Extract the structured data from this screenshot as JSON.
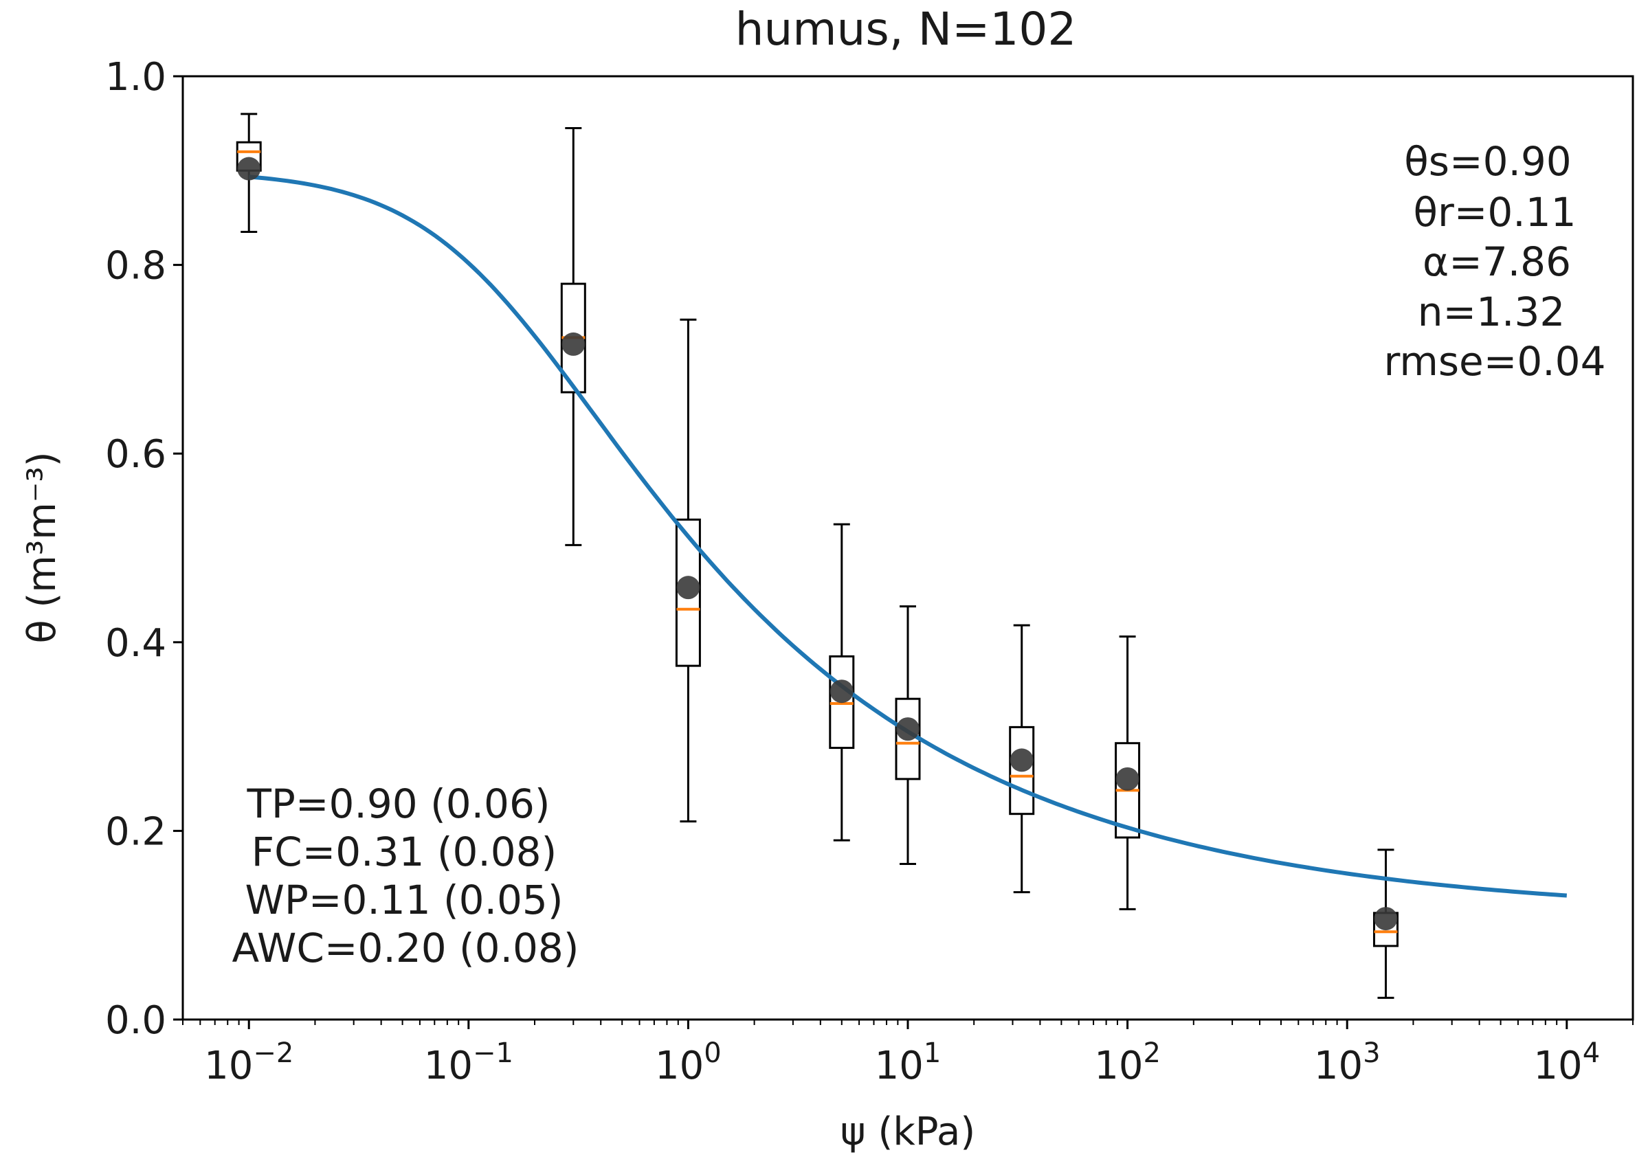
{
  "chart_data": {
    "type": "box",
    "title": "humus, N=102",
    "xlabel": "ψ (kPa)",
    "ylabel": "θ (m³m⁻³)",
    "xscale": "log",
    "xlim": [
      0.005,
      20000
    ],
    "ylim": [
      0.0,
      1.0
    ],
    "grid": false,
    "yticks": [
      {
        "value": 0.0,
        "label": "0.0"
      },
      {
        "value": 0.2,
        "label": "0.2"
      },
      {
        "value": 0.4,
        "label": "0.4"
      },
      {
        "value": 0.6,
        "label": "0.6"
      },
      {
        "value": 0.8,
        "label": "0.8"
      },
      {
        "value": 1.0,
        "label": "1.0"
      }
    ],
    "xticks": [
      {
        "value": 0.01,
        "base": "10",
        "exp": "−2"
      },
      {
        "value": 0.1,
        "base": "10",
        "exp": "−1"
      },
      {
        "value": 1,
        "base": "10",
        "exp": "0"
      },
      {
        "value": 10,
        "base": "10",
        "exp": "1"
      },
      {
        "value": 100,
        "base": "10",
        "exp": "2"
      },
      {
        "value": 1000,
        "base": "10",
        "exp": "3"
      },
      {
        "value": 10000,
        "base": "10",
        "exp": "4"
      }
    ],
    "boxes": [
      {
        "x": 0.01,
        "whisker_low": 0.835,
        "q1": 0.9,
        "median": 0.92,
        "q3": 0.93,
        "whisker_high": 0.96,
        "mean": 0.902
      },
      {
        "x": 0.3,
        "whisker_low": 0.503,
        "q1": 0.665,
        "median": 0.723,
        "q3": 0.78,
        "whisker_high": 0.945,
        "mean": 0.716
      },
      {
        "x": 1,
        "whisker_low": 0.21,
        "q1": 0.375,
        "median": 0.435,
        "q3": 0.53,
        "whisker_high": 0.742,
        "mean": 0.458
      },
      {
        "x": 5,
        "whisker_low": 0.19,
        "q1": 0.288,
        "median": 0.335,
        "q3": 0.385,
        "whisker_high": 0.525,
        "mean": 0.348
      },
      {
        "x": 10,
        "whisker_low": 0.165,
        "q1": 0.255,
        "median": 0.293,
        "q3": 0.34,
        "whisker_high": 0.438,
        "mean": 0.308
      },
      {
        "x": 33,
        "whisker_low": 0.135,
        "q1": 0.218,
        "median": 0.258,
        "q3": 0.31,
        "whisker_high": 0.418,
        "mean": 0.275
      },
      {
        "x": 100,
        "whisker_low": 0.117,
        "q1": 0.193,
        "median": 0.243,
        "q3": 0.293,
        "whisker_high": 0.406,
        "mean": 0.255
      },
      {
        "x": 1500,
        "whisker_low": 0.023,
        "q1": 0.078,
        "median": 0.093,
        "q3": 0.113,
        "whisker_high": 0.18,
        "mean": 0.107
      }
    ],
    "fit_curve": {
      "model": "van Genuchten",
      "x_range": [
        0.01,
        10000
      ],
      "theta_s": 0.9,
      "theta_r": 0.11,
      "alpha": 7.86,
      "n": 1.32
    },
    "fit_stats": {
      "theta_s_label": "θs=0.90",
      "theta_r_label": "θr=0.11",
      "alpha_label": "α=7.86",
      "n_label": "n=1.32",
      "rmse_label": "rmse=0.04"
    },
    "summary_stats": {
      "tp_label": "TP=0.90 (0.06)",
      "fc_label": "FC=0.31 (0.08)",
      "wp_label": "WP=0.11 (0.05)",
      "awc_label": "AWC=0.20 (0.08)"
    },
    "colors": {
      "curve": "#1f77b4",
      "median": "#ff7f0e",
      "mean_marker": "#3a3a3a",
      "box": "#000000"
    }
  }
}
